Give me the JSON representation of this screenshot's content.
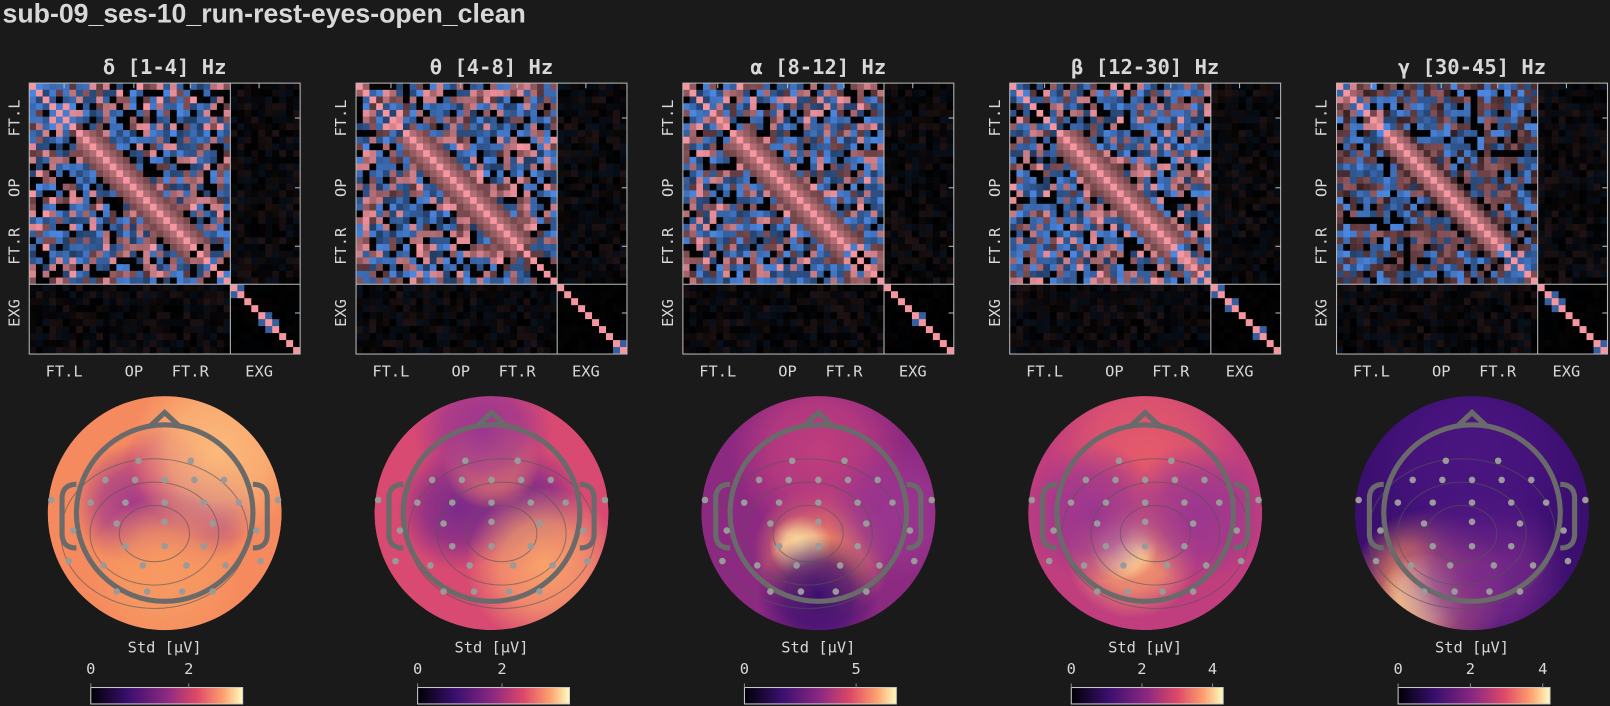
{
  "title": "sub-09_ses-10_run-rest-eyes-open_clean",
  "panels": [
    {
      "title": "δ [1-4] Hz",
      "matrix": {
        "y_labels": [
          "FT.L",
          "OP",
          "FT.R",
          "EXG"
        ],
        "x_labels": [
          "FT.L",
          "OP",
          "FT.R",
          "EXG"
        ]
      },
      "colorbar": {
        "label": "Std [μV]",
        "lim": [
          0,
          3.1
        ],
        "ticks": [
          0,
          2
        ]
      }
    },
    {
      "title": "θ [4-8] Hz",
      "matrix": {
        "y_labels": [
          "FT.L",
          "OP",
          "FT.R",
          "EXG"
        ],
        "x_labels": [
          "FT.L",
          "OP",
          "FT.R",
          "EXG"
        ]
      },
      "colorbar": {
        "label": "Std [μV]",
        "lim": [
          0,
          3.6
        ],
        "ticks": [
          0,
          2
        ]
      }
    },
    {
      "title": "α [8-12] Hz",
      "matrix": {
        "y_labels": [
          "FT.L",
          "OP",
          "FT.R",
          "EXG"
        ],
        "x_labels": [
          "FT.L",
          "OP",
          "FT.R",
          "EXG"
        ]
      },
      "colorbar": {
        "label": "Std [μV]",
        "lim": [
          0,
          6.8
        ],
        "ticks": [
          0,
          5
        ]
      }
    },
    {
      "title": "β [12-30] Hz",
      "matrix": {
        "y_labels": [
          "FT.L",
          "OP",
          "FT.R",
          "EXG"
        ],
        "x_labels": [
          "FT.L",
          "OP",
          "FT.R",
          "EXG"
        ]
      },
      "colorbar": {
        "label": "Std [μV]",
        "lim": [
          0,
          4.3
        ],
        "ticks": [
          0,
          2,
          4
        ]
      }
    },
    {
      "title": "γ [30-45] Hz",
      "matrix": {
        "y_labels": [
          "FT.L",
          "OP",
          "FT.R",
          "EXG"
        ],
        "x_labels": [
          "FT.L",
          "OP",
          "FT.R",
          "EXG"
        ]
      },
      "colorbar": {
        "label": "Std [μV]",
        "lim": [
          0,
          4.2
        ],
        "ticks": [
          0,
          2,
          4
        ]
      }
    }
  ]
}
